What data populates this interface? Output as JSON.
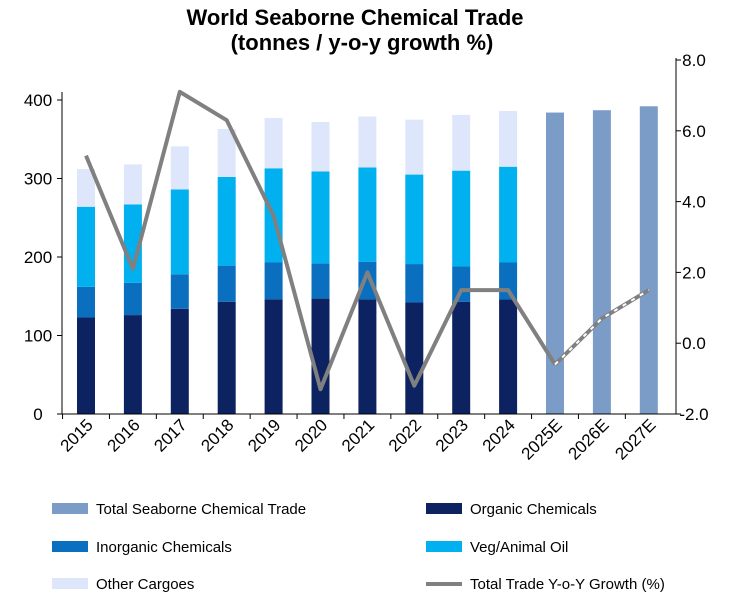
{
  "chart_data": {
    "type": "bar",
    "title": "World Seaborne Chemical Trade",
    "subtitle": "(tonnes / y-o-y growth %)",
    "categories": [
      "2015",
      "2016",
      "2017",
      "2018",
      "2019",
      "2020",
      "2021",
      "2022",
      "2023",
      "2024",
      "2025E",
      "2026E",
      "2027E"
    ],
    "y_left": {
      "ylim": [
        0,
        400
      ],
      "ticks": [
        0,
        100,
        200,
        300,
        400
      ]
    },
    "y_right": {
      "ylim": [
        -2,
        8
      ],
      "ticks": [
        "-2.0",
        "0.0",
        "2.0",
        "4.0",
        "6.0",
        "8.0"
      ]
    },
    "series": [
      {
        "name": "Organic Chemicals",
        "color": "#0d2260",
        "stack": true,
        "values": [
          123,
          126,
          134,
          143,
          146,
          147,
          146,
          142,
          143,
          146,
          null,
          null,
          null
        ]
      },
      {
        "name": "Inorganic Chemicals",
        "color": "#0a6fbf",
        "stack": true,
        "values": [
          39,
          41,
          44,
          46,
          47,
          45,
          48,
          49,
          45,
          47,
          null,
          null,
          null
        ]
      },
      {
        "name": "Veg/Animal Oil",
        "color": "#00b0ef",
        "stack": true,
        "values": [
          102,
          100,
          108,
          113,
          120,
          117,
          120,
          114,
          122,
          122,
          null,
          null,
          null
        ]
      },
      {
        "name": "Other Cargoes",
        "color": "#dde6fb",
        "stack": true,
        "values": [
          48,
          51,
          55,
          61,
          64,
          63,
          65,
          70,
          71,
          71,
          null,
          null,
          null
        ]
      },
      {
        "name": "Total Seaborne Chemical Trade",
        "color": "#7a9cc6",
        "stack": false,
        "values": [
          null,
          null,
          null,
          null,
          null,
          null,
          null,
          null,
          null,
          null,
          384,
          387,
          392
        ]
      },
      {
        "name": "Total Trade Y-o-Y Growth (%)",
        "color": "#808080",
        "type": "line",
        "axis": "right",
        "values": [
          5.3,
          2.1,
          7.1,
          6.3,
          3.6,
          -1.3,
          2.0,
          -1.2,
          1.5,
          1.5,
          -0.6,
          0.7,
          1.5
        ],
        "forecast_from_index": 10
      }
    ],
    "legend": [
      {
        "label": "Total Seaborne Chemical Trade",
        "symbol": "bar",
        "color": "#7a9cc6"
      },
      {
        "label": "Organic Chemicals",
        "symbol": "bar",
        "color": "#0d2260"
      },
      {
        "label": "Inorganic Chemicals",
        "symbol": "bar",
        "color": "#0a6fbf"
      },
      {
        "label": "Veg/Animal Oil",
        "symbol": "bar",
        "color": "#00b0ef"
      },
      {
        "label": "Other Cargoes",
        "symbol": "bar",
        "color": "#dde6fb"
      },
      {
        "label": "Total Trade Y-o-Y Growth (%)",
        "symbol": "line",
        "color": "#808080"
      }
    ],
    "legend_position": "bottom",
    "grid": false
  }
}
